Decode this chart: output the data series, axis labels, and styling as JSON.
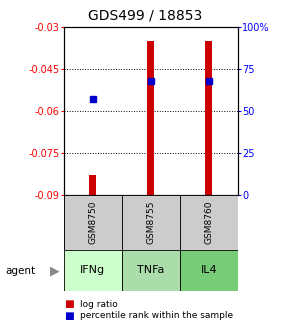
{
  "title": "GDS499 / 18853",
  "categories": [
    "IFNg",
    "TNFa",
    "IL4"
  ],
  "gsm_labels": [
    "GSM8750",
    "GSM8755",
    "GSM8760"
  ],
  "log_ratios": [
    -0.083,
    -0.035,
    -0.035
  ],
  "percentiles": [
    57,
    68,
    68
  ],
  "ylim_left": [
    -0.09,
    -0.03
  ],
  "ylim_right": [
    0,
    100
  ],
  "yticks_left": [
    -0.09,
    -0.075,
    -0.06,
    -0.045,
    -0.03
  ],
  "yticks_right": [
    0,
    25,
    50,
    75,
    100
  ],
  "ytick_labels_left": [
    "-0.09",
    "-0.075",
    "-0.06",
    "-0.045",
    "-0.03"
  ],
  "ytick_labels_right": [
    "0",
    "25",
    "50",
    "75",
    "100%"
  ],
  "bar_color": "#cc0000",
  "dot_color": "#0000cc",
  "agent_colors": [
    "#ccffcc",
    "#aaddaa",
    "#77cc77"
  ],
  "gsm_box_color": "#cccccc",
  "title_fontsize": 10,
  "bar_zero": -0.09,
  "bar_width": 0.12
}
